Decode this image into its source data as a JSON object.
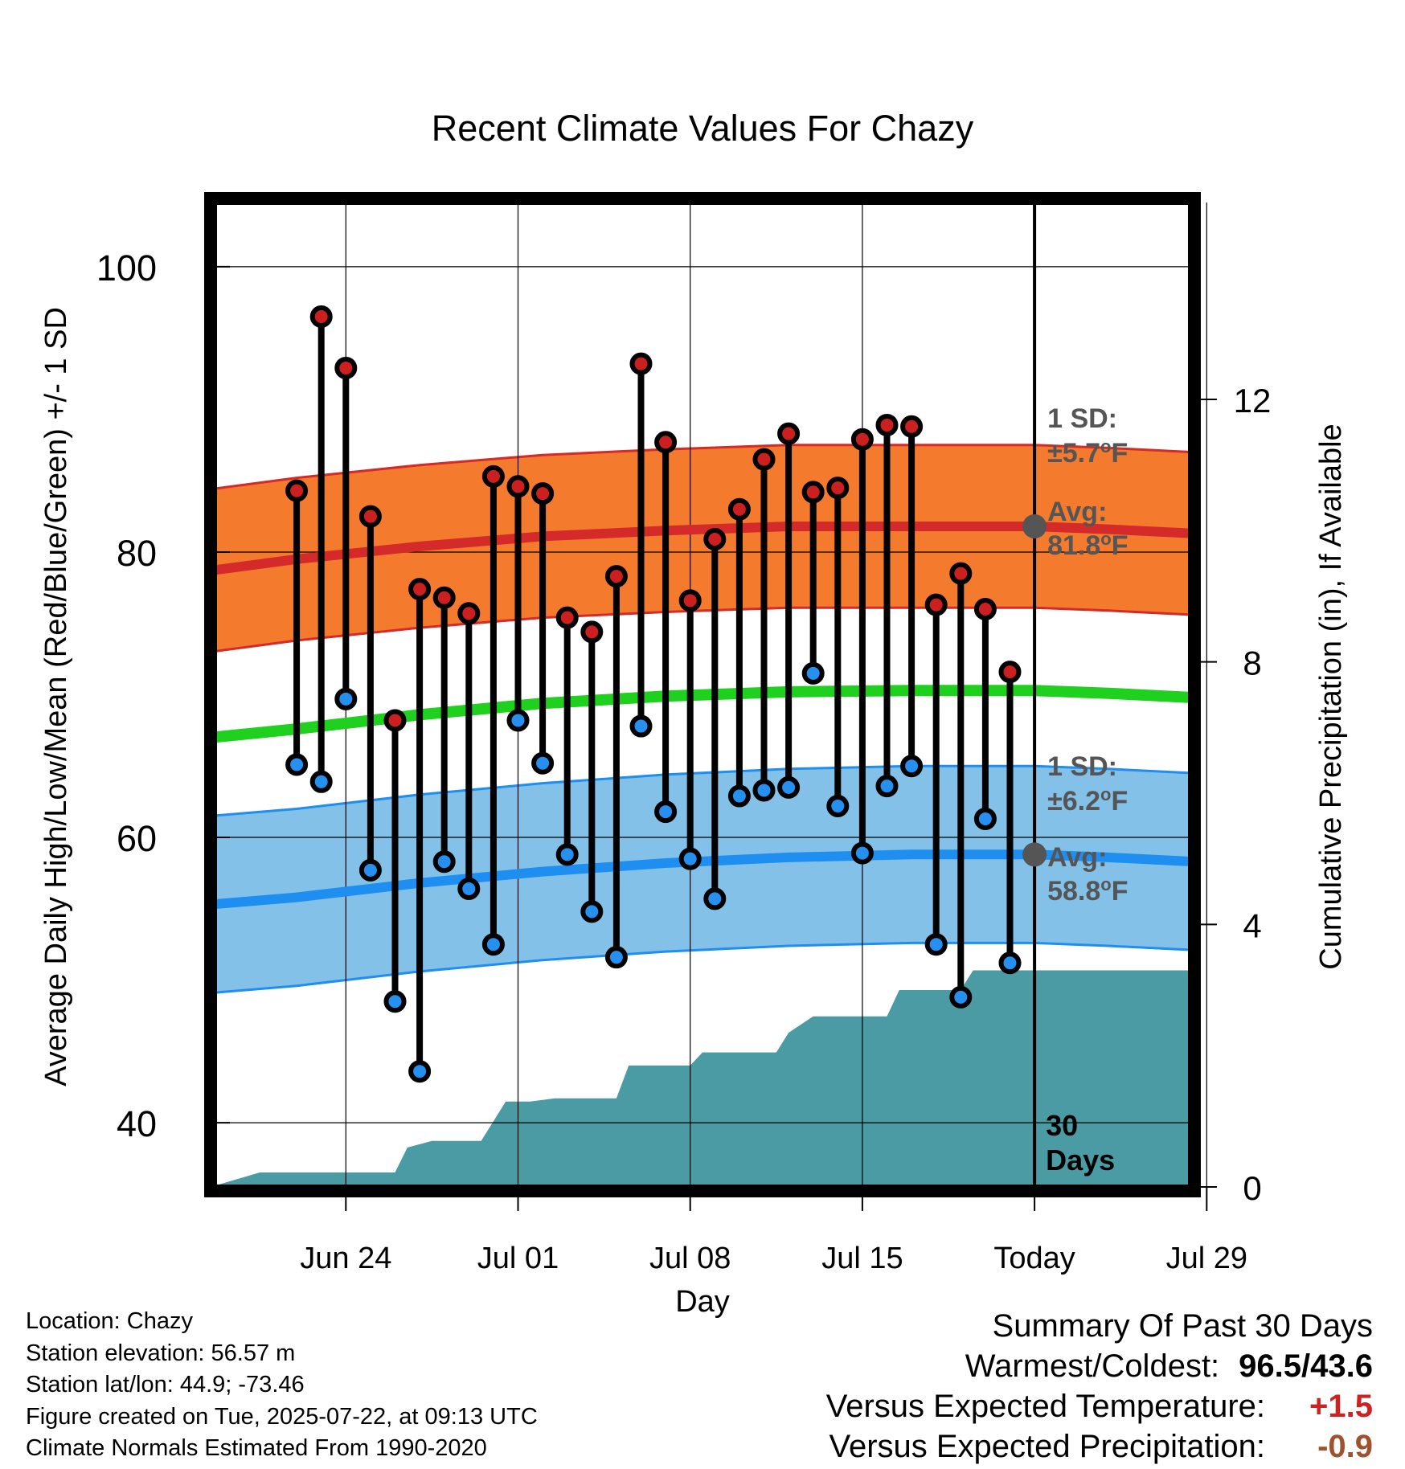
{
  "chart_data": {
    "type": "line",
    "title": "Recent Climate Values For Chazy",
    "xlabel": "Day",
    "ylabel": "Average Daily High/Low/Mean (Red/Blue/Green) +/- 1 SD",
    "ylabel_right": "Cumulative Precipitation (in), If Available",
    "xlim_days": [
      -33.5,
      6.5
    ],
    "ylim": [
      35.5,
      104.5
    ],
    "y2lim": [
      0,
      15
    ],
    "grid": true,
    "y_ticks": [
      40,
      60,
      80,
      100
    ],
    "y2_ticks": [
      0,
      4,
      8,
      12
    ],
    "x_ticks": [
      {
        "day": -28,
        "label": "Jun 24"
      },
      {
        "day": -21,
        "label": "Jul 01"
      },
      {
        "day": -14,
        "label": "Jul 08"
      },
      {
        "day": -7,
        "label": "Jul 15"
      },
      {
        "day": 0,
        "label": "Today"
      },
      {
        "day": 7,
        "label": "Jul 29"
      }
    ],
    "observed": {
      "day": [
        -30,
        -29,
        -28,
        -27,
        -26,
        -25,
        -24,
        -23,
        -22,
        -21,
        -20,
        -19,
        -18,
        -17,
        -16,
        -15,
        -14,
        -13,
        -12,
        -11,
        -10,
        -9,
        -8,
        -7,
        -6,
        -5,
        -4,
        -3,
        -2,
        -1
      ],
      "high": [
        84.3,
        96.5,
        92.9,
        82.5,
        68.2,
        77.4,
        76.8,
        75.7,
        85.3,
        84.6,
        84.1,
        75.4,
        74.4,
        78.3,
        93.2,
        87.7,
        76.6,
        80.9,
        83.0,
        86.5,
        88.3,
        84.2,
        84.5,
        87.9,
        88.9,
        88.8,
        76.3,
        78.5,
        76.0,
        71.6
      ],
      "low": [
        65.1,
        63.9,
        69.7,
        57.7,
        48.5,
        43.6,
        58.3,
        56.4,
        52.5,
        68.2,
        65.2,
        58.8,
        54.8,
        51.6,
        67.8,
        61.8,
        58.5,
        55.7,
        62.9,
        63.3,
        63.5,
        71.5,
        62.2,
        58.9,
        63.6,
        65.0,
        52.5,
        48.8,
        61.3,
        51.2
      ]
    },
    "normals": {
      "day": [
        -33.5,
        -30,
        -25,
        -20,
        -15,
        -10,
        -5,
        0,
        3,
        6.5
      ],
      "high_avg": [
        78.7,
        79.5,
        80.4,
        81.1,
        81.5,
        81.8,
        81.8,
        81.8,
        81.6,
        81.3
      ],
      "low_avg": [
        55.3,
        55.8,
        56.8,
        57.6,
        58.2,
        58.6,
        58.8,
        58.8,
        58.6,
        58.3
      ],
      "mean_avg": [
        67.0,
        67.6,
        68.6,
        69.4,
        69.9,
        70.2,
        70.3,
        70.3,
        70.1,
        69.8
      ],
      "high_sd": 5.7,
      "low_sd": 6.2
    },
    "precip_cumulative": {
      "day": [
        -33.5,
        -31.5,
        -28,
        -27.5,
        -26,
        -25.5,
        -24.5,
        -22.5,
        -21.5,
        -20.5,
        -19.5,
        -19,
        -17,
        -16.5,
        -15,
        -14,
        -13.5,
        -12,
        -10.5,
        -10,
        -9,
        -7.5,
        -6,
        -5.5,
        -4,
        -3,
        -2.5,
        0,
        6.5
      ],
      "value": [
        0,
        0.22,
        0.22,
        0.22,
        0.22,
        0.6,
        0.7,
        0.7,
        1.3,
        1.3,
        1.35,
        1.35,
        1.35,
        1.85,
        1.85,
        1.85,
        2.05,
        2.05,
        2.05,
        2.35,
        2.6,
        2.6,
        2.6,
        3.0,
        3.0,
        3.0,
        3.3,
        3.3,
        3.3
      ]
    },
    "annotations": {
      "high_sd_label": "1 SD:",
      "high_sd_value": "±5.7",
      "high_avg_label": "Avg:",
      "high_avg_value": "81.8",
      "low_sd_label": "1 SD:",
      "low_sd_value": "±6.2",
      "low_avg_label": "Avg:",
      "low_avg_value": "58.8",
      "degree_unit": "o",
      "temp_unit": "F",
      "window_number": "30",
      "window_word": "Days"
    },
    "colors": {
      "high_band": "#f47a2e",
      "high_line": "#d42a2a",
      "low_band": "#84c1e8",
      "low_line": "#1e8ff0",
      "mean_line": "#1fd01f",
      "precip": "#4a9ba3",
      "high_marker": "#cc2020",
      "low_marker": "#2590f0",
      "annotation_text": "#555555"
    }
  },
  "footer": {
    "location": "Location: Chazy",
    "elevation": "Station elevation: 56.57 m",
    "latlon": "Station lat/lon: 44.9; -73.46",
    "created": "Figure created on Tue, 2025-07-22, at 09:13 UTC",
    "normals": "Climate Normals Estimated From 1990-2020"
  },
  "summary": {
    "title": "Summary Of Past 30 Days",
    "warmest_label": "Warmest/Coldest:",
    "warmest_value": "96.5/43.6",
    "temp_label": "Versus Expected Temperature:",
    "temp_value": "+1.5",
    "temp_color": "#cc2222",
    "precip_label": "Versus Expected Precipitation:",
    "precip_value": "-0.9",
    "precip_color": "#a0522d"
  }
}
